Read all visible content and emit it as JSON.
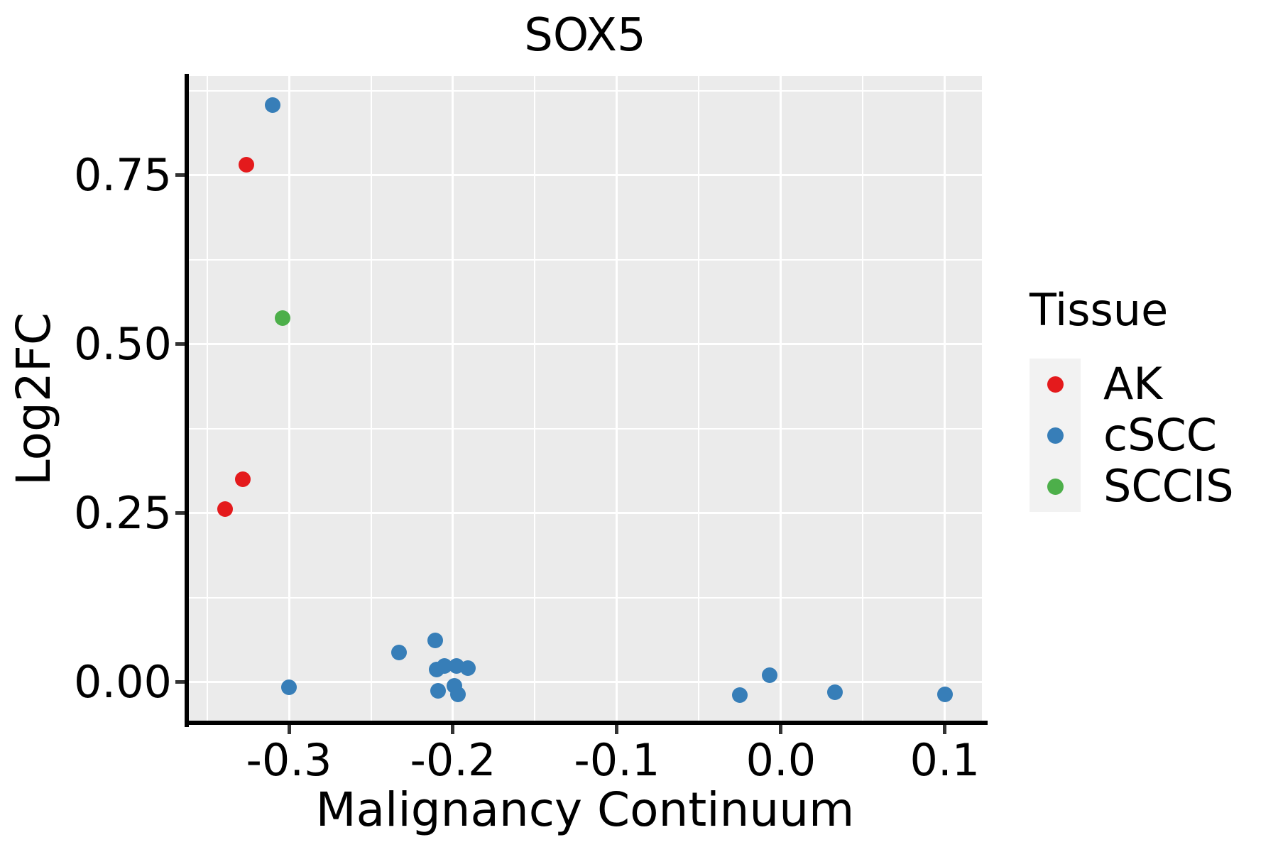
{
  "style": {
    "panel_bg": "#EBEBEB",
    "grid_color": "#FFFFFF",
    "axis_color": "#000000",
    "text_color": "#000000",
    "legend_key_bg": "#F2F2F2"
  },
  "chart_data": {
    "type": "scatter",
    "title": "SOX5",
    "xlabel": "Malignancy Continuum",
    "ylabel": "Log2FC",
    "grid": true,
    "legend_position": "right",
    "legend": {
      "title": "Tissue"
    },
    "x_axis": {
      "domain": [
        -0.3615,
        0.1226
      ],
      "tick_values": [
        -0.3,
        -0.2,
        -0.1,
        0.0,
        0.1
      ],
      "tick_labels": [
        "-0.3",
        "-0.2",
        "-0.1",
        "0.0",
        "0.1"
      ],
      "minor_ticks": [
        -0.35,
        -0.25,
        -0.15,
        -0.05,
        0.05
      ]
    },
    "y_axis": {
      "domain": [
        -0.06,
        0.897
      ],
      "tick_values": [
        0.0,
        0.25,
        0.5,
        0.75
      ],
      "tick_labels": [
        "0.00",
        "0.25",
        "0.50",
        "0.75"
      ],
      "minor_ticks": [
        0.125,
        0.375,
        0.625,
        0.875
      ]
    },
    "series": [
      {
        "name": "AK",
        "color": "#E41A1C",
        "points": [
          {
            "x": -0.326,
            "y": 0.766
          },
          {
            "x": -0.328,
            "y": 0.3
          },
          {
            "x": -0.339,
            "y": 0.256
          }
        ]
      },
      {
        "name": "cSCC",
        "color": "#377EB8",
        "points": [
          {
            "x": -0.31,
            "y": 0.854
          },
          {
            "x": -0.3,
            "y": -0.008
          },
          {
            "x": -0.233,
            "y": 0.044
          },
          {
            "x": -0.211,
            "y": 0.062
          },
          {
            "x": -0.21,
            "y": 0.019
          },
          {
            "x": -0.205,
            "y": 0.024
          },
          {
            "x": -0.198,
            "y": 0.024
          },
          {
            "x": -0.191,
            "y": 0.021
          },
          {
            "x": -0.209,
            "y": -0.013
          },
          {
            "x": -0.199,
            "y": -0.005
          },
          {
            "x": -0.197,
            "y": -0.018
          },
          {
            "x": -0.025,
            "y": -0.019
          },
          {
            "x": -0.007,
            "y": 0.01
          },
          {
            "x": 0.033,
            "y": -0.015
          },
          {
            "x": 0.1,
            "y": -0.018
          }
        ]
      },
      {
        "name": "SCCIS",
        "color": "#4DAF4A",
        "points": [
          {
            "x": -0.304,
            "y": 0.539
          }
        ]
      }
    ]
  }
}
